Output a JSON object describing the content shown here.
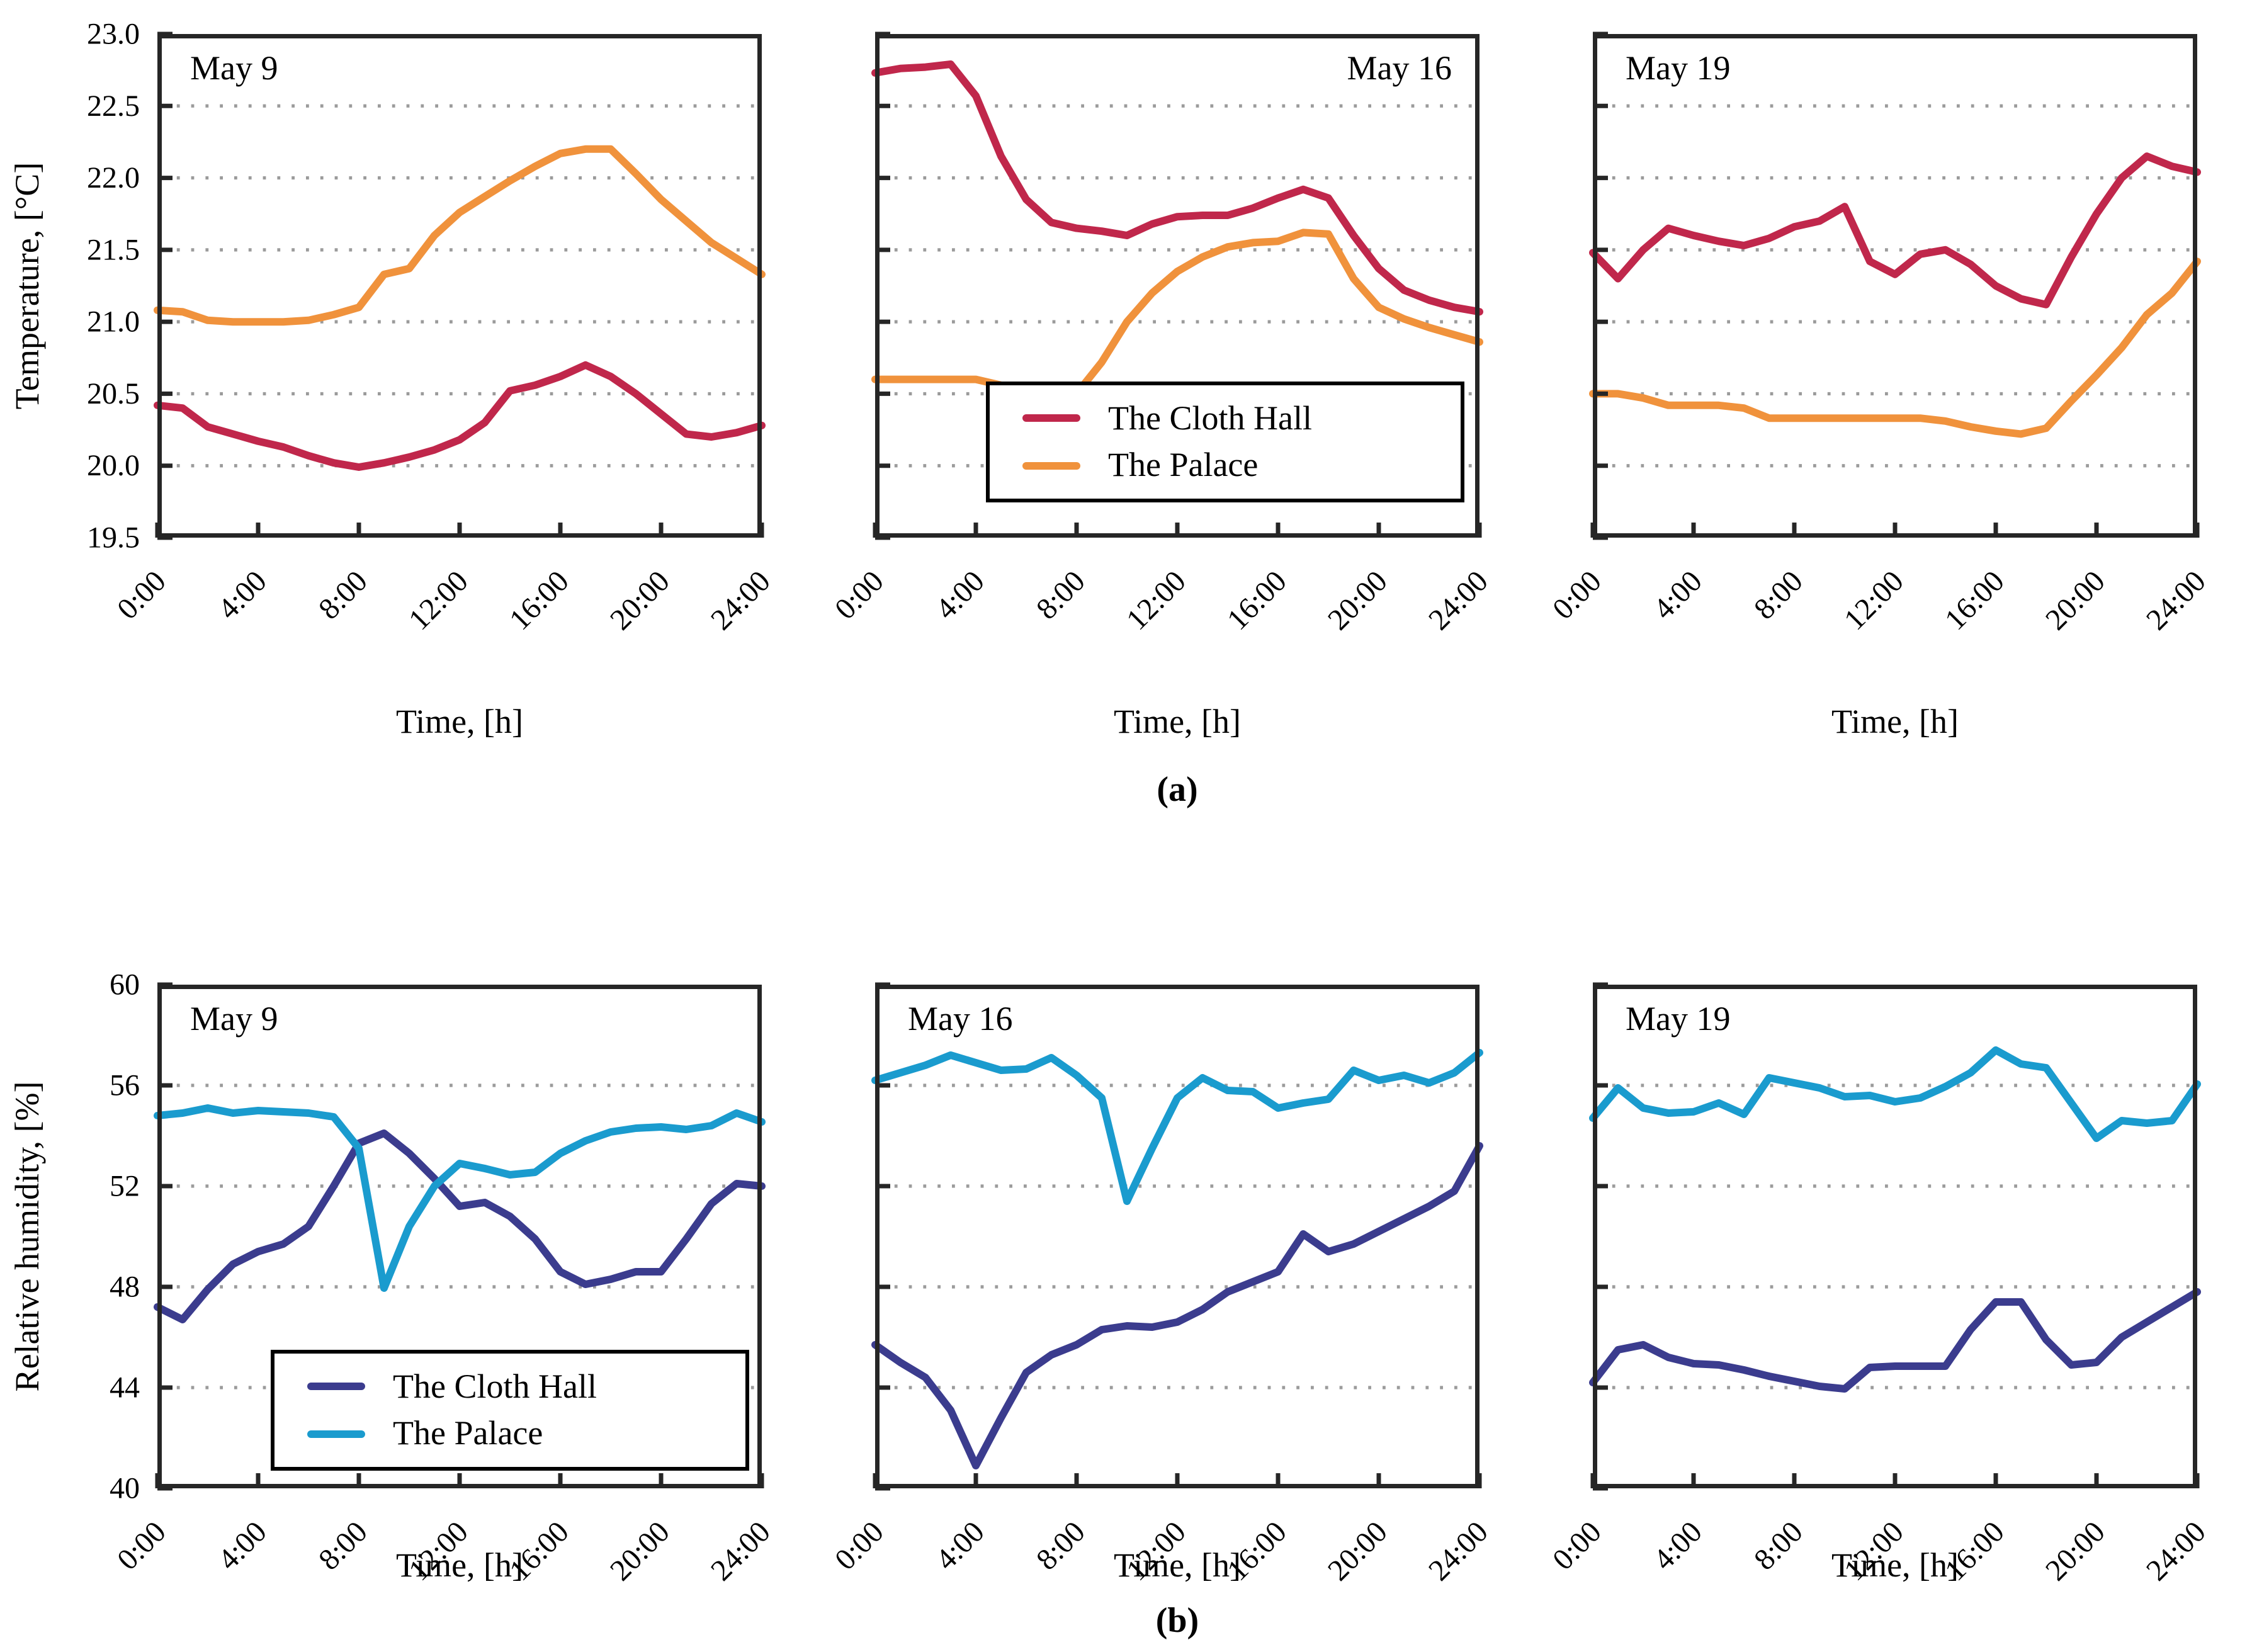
{
  "figure": {
    "sublabels": {
      "a": "(a)",
      "b": "(b)"
    }
  },
  "colors": {
    "cloth_hall_temperature": "#c0274b",
    "palace_temperature": "#f0923c",
    "cloth_hall_humidity": "#3b3c8e",
    "palace_humidity": "#1a9bce",
    "grid": "#9b9b9b",
    "frame": "#262626"
  },
  "legend_temperature": {
    "entries": [
      {
        "label": "The Cloth Hall",
        "color": "cloth_hall_temperature"
      },
      {
        "label": "The Palace",
        "color": "palace_temperature"
      }
    ]
  },
  "legend_humidity": {
    "entries": [
      {
        "label": "The Cloth Hall",
        "color": "cloth_hall_humidity"
      },
      {
        "label": "The Palace",
        "color": "palace_humidity"
      }
    ]
  },
  "chart_data": [
    {
      "type": "line",
      "title": "May 9",
      "title_pos": "left",
      "ylabel": "Temperature, [°C]",
      "xlabel": "Time, [h]",
      "ylim": [
        19.5,
        23.0
      ],
      "yticks": [
        19.5,
        20.0,
        20.5,
        21.0,
        21.5,
        22.0,
        22.5,
        23.0
      ],
      "ytick_labels": [
        "19.5",
        "20.0",
        "20.5",
        "21.0",
        "21.5",
        "22.0",
        "22.5",
        "23.0"
      ],
      "show_ytick_labels": true,
      "gridlines": [
        20.0,
        20.5,
        21.0,
        21.5,
        22.0,
        22.5
      ],
      "x_hours": [
        0,
        1,
        2,
        3,
        4,
        5,
        6,
        7,
        8,
        9,
        10,
        11,
        12,
        13,
        14,
        15,
        16,
        17,
        18,
        19,
        20,
        21,
        22,
        23,
        24
      ],
      "xticks": [
        0,
        4,
        8,
        12,
        16,
        20,
        24
      ],
      "xtick_labels": [
        "0:00",
        "4:00",
        "8:00",
        "12:00",
        "16:00",
        "20:00",
        "24:00"
      ],
      "grid": true,
      "legend_position": "none",
      "series": [
        {
          "name": "The Cloth Hall",
          "color": "cloth_hall_temperature",
          "values": [
            20.42,
            20.4,
            20.27,
            20.22,
            20.17,
            20.13,
            20.07,
            20.02,
            19.99,
            20.02,
            20.06,
            20.11,
            20.18,
            20.3,
            20.52,
            20.56,
            20.62,
            20.7,
            20.62,
            20.5,
            20.36,
            20.22,
            20.2,
            20.23,
            20.28
          ]
        },
        {
          "name": "The Palace",
          "color": "palace_temperature",
          "values": [
            21.08,
            21.07,
            21.01,
            21.0,
            21.0,
            21.0,
            21.01,
            21.05,
            21.1,
            21.33,
            21.37,
            21.6,
            21.76,
            21.87,
            21.98,
            22.08,
            22.17,
            22.2,
            22.2,
            22.03,
            21.85,
            21.7,
            21.55,
            21.44,
            21.33
          ]
        }
      ]
    },
    {
      "type": "line",
      "title": "May 16",
      "title_pos": "right",
      "ylabel": "Temperature, [°C]",
      "xlabel": "Time, [h]",
      "ylim": [
        19.5,
        23.0
      ],
      "yticks": [
        19.5,
        20.0,
        20.5,
        21.0,
        21.5,
        22.0,
        22.5,
        23.0
      ],
      "ytick_labels": [
        "19.5",
        "20.0",
        "20.5",
        "21.0",
        "21.5",
        "22.0",
        "22.5",
        "23.0"
      ],
      "show_ytick_labels": false,
      "gridlines": [
        20.0,
        20.5,
        21.0,
        21.5,
        22.0,
        22.5
      ],
      "x_hours": [
        0,
        1,
        2,
        3,
        4,
        5,
        6,
        7,
        8,
        9,
        10,
        11,
        12,
        13,
        14,
        15,
        16,
        17,
        18,
        19,
        20,
        21,
        22,
        23,
        24
      ],
      "xticks": [
        0,
        4,
        8,
        12,
        16,
        20,
        24
      ],
      "xtick_labels": [
        "0:00",
        "4:00",
        "8:00",
        "12:00",
        "16:00",
        "20:00",
        "24:00"
      ],
      "grid": true,
      "legend_position": "lower-center",
      "series": [
        {
          "name": "The Cloth Hall",
          "color": "cloth_hall_temperature",
          "values": [
            22.73,
            22.76,
            22.77,
            22.79,
            22.57,
            22.15,
            21.85,
            21.69,
            21.65,
            21.63,
            21.6,
            21.68,
            21.73,
            21.74,
            21.74,
            21.79,
            21.86,
            21.92,
            21.86,
            21.6,
            21.37,
            21.22,
            21.15,
            21.1,
            21.07
          ]
        },
        {
          "name": "The Palace",
          "color": "palace_temperature",
          "values": [
            20.6,
            20.6,
            20.6,
            20.6,
            20.6,
            20.56,
            20.5,
            20.5,
            20.5,
            20.72,
            21.0,
            21.2,
            21.35,
            21.45,
            21.52,
            21.55,
            21.56,
            21.62,
            21.61,
            21.3,
            21.1,
            21.02,
            20.96,
            20.91,
            20.86
          ]
        }
      ]
    },
    {
      "type": "line",
      "title": "May 19",
      "title_pos": "left",
      "ylabel": "Temperature, [°C]",
      "xlabel": "Time, [h]",
      "ylim": [
        19.5,
        23.0
      ],
      "yticks": [
        19.5,
        20.0,
        20.5,
        21.0,
        21.5,
        22.0,
        22.5,
        23.0
      ],
      "ytick_labels": [
        "19.5",
        "20.0",
        "20.5",
        "21.0",
        "21.5",
        "22.0",
        "22.5",
        "23.0"
      ],
      "show_ytick_labels": false,
      "gridlines": [
        20.0,
        20.5,
        21.0,
        21.5,
        22.0,
        22.5
      ],
      "x_hours": [
        0,
        1,
        2,
        3,
        4,
        5,
        6,
        7,
        8,
        9,
        10,
        11,
        12,
        13,
        14,
        15,
        16,
        17,
        18,
        19,
        20,
        21,
        22,
        23,
        24
      ],
      "xticks": [
        0,
        4,
        8,
        12,
        16,
        20,
        24
      ],
      "xtick_labels": [
        "0:00",
        "4:00",
        "8:00",
        "12:00",
        "16:00",
        "20:00",
        "24:00"
      ],
      "grid": true,
      "legend_position": "none",
      "series": [
        {
          "name": "The Cloth Hall",
          "color": "cloth_hall_temperature",
          "values": [
            21.48,
            21.3,
            21.5,
            21.65,
            21.6,
            21.56,
            21.53,
            21.58,
            21.66,
            21.7,
            21.8,
            21.42,
            21.33,
            21.47,
            21.5,
            21.4,
            21.25,
            21.16,
            21.12,
            21.45,
            21.75,
            22.0,
            22.15,
            22.08,
            22.04
          ]
        },
        {
          "name": "The Palace",
          "color": "palace_temperature",
          "values": [
            20.5,
            20.5,
            20.47,
            20.42,
            20.42,
            20.42,
            20.4,
            20.33,
            20.33,
            20.33,
            20.33,
            20.33,
            20.33,
            20.33,
            20.31,
            20.27,
            20.24,
            20.22,
            20.26,
            20.45,
            20.63,
            20.82,
            21.05,
            21.2,
            21.42
          ]
        }
      ]
    },
    {
      "type": "line",
      "title": "May 9",
      "title_pos": "left",
      "ylabel": "Relative humidity, [%]",
      "xlabel": "Time, [h]",
      "ylim": [
        40,
        60
      ],
      "yticks": [
        40,
        44,
        48,
        52,
        56,
        60
      ],
      "ytick_labels": [
        "40",
        "44",
        "48",
        "52",
        "56",
        "60"
      ],
      "show_ytick_labels": true,
      "gridlines": [
        44,
        48,
        52,
        56
      ],
      "x_hours": [
        0,
        1,
        2,
        3,
        4,
        5,
        6,
        7,
        8,
        9,
        10,
        11,
        12,
        13,
        14,
        15,
        16,
        17,
        18,
        19,
        20,
        21,
        22,
        23,
        24
      ],
      "xticks": [
        0,
        4,
        8,
        12,
        16,
        20,
        24
      ],
      "xtick_labels": [
        "0:00",
        "4:00",
        "8:00",
        "12:00",
        "16:00",
        "20:00",
        "24:00"
      ],
      "grid": true,
      "legend_position": "lower-center",
      "series": [
        {
          "name": "The Cloth Hall",
          "color": "cloth_hall_humidity",
          "values": [
            47.2,
            46.7,
            47.9,
            48.9,
            49.4,
            49.7,
            50.4,
            52.0,
            53.7,
            54.1,
            53.3,
            52.3,
            51.2,
            51.35,
            50.8,
            49.9,
            48.6,
            48.1,
            48.3,
            48.6,
            48.6,
            49.9,
            51.3,
            52.1,
            52.0
          ]
        },
        {
          "name": "The Palace",
          "color": "palace_humidity",
          "values": [
            54.8,
            54.9,
            55.1,
            54.9,
            55.0,
            54.95,
            54.9,
            54.75,
            53.5,
            47.95,
            50.4,
            52.0,
            52.9,
            52.7,
            52.45,
            52.55,
            53.3,
            53.8,
            54.15,
            54.3,
            54.35,
            54.25,
            54.4,
            54.9,
            54.55
          ]
        }
      ]
    },
    {
      "type": "line",
      "title": "May 16",
      "title_pos": "left",
      "ylabel": "Relative humidity, [%]",
      "xlabel": "Time, [h]",
      "ylim": [
        40,
        60
      ],
      "yticks": [
        40,
        44,
        48,
        52,
        56,
        60
      ],
      "ytick_labels": [
        "40",
        "44",
        "48",
        "52",
        "56",
        "60"
      ],
      "show_ytick_labels": false,
      "gridlines": [
        44,
        48,
        52,
        56
      ],
      "x_hours": [
        0,
        1,
        2,
        3,
        4,
        5,
        6,
        7,
        8,
        9,
        10,
        11,
        12,
        13,
        14,
        15,
        16,
        17,
        18,
        19,
        20,
        21,
        22,
        23,
        24
      ],
      "xticks": [
        0,
        4,
        8,
        12,
        16,
        20,
        24
      ],
      "xtick_labels": [
        "0:00",
        "4:00",
        "8:00",
        "12:00",
        "16:00",
        "20:00",
        "24:00"
      ],
      "grid": true,
      "legend_position": "none",
      "series": [
        {
          "name": "The Cloth Hall",
          "color": "cloth_hall_humidity",
          "values": [
            45.7,
            45.0,
            44.4,
            43.1,
            40.9,
            42.8,
            44.6,
            45.3,
            45.7,
            46.3,
            46.45,
            46.4,
            46.6,
            47.1,
            47.8,
            48.2,
            48.6,
            50.1,
            49.4,
            49.7,
            50.2,
            50.7,
            51.2,
            51.8,
            53.6
          ]
        },
        {
          "name": "The Palace",
          "color": "palace_humidity",
          "values": [
            56.2,
            56.5,
            56.8,
            57.2,
            56.9,
            56.6,
            56.65,
            57.1,
            56.4,
            55.5,
            51.4,
            53.5,
            55.5,
            56.3,
            55.8,
            55.75,
            55.1,
            55.3,
            55.45,
            56.6,
            56.2,
            56.4,
            56.1,
            56.5,
            57.3
          ]
        }
      ]
    },
    {
      "type": "line",
      "title": "May 19",
      "title_pos": "left",
      "ylabel": "Relative humidity, [%]",
      "xlabel": "Time, [h]",
      "ylim": [
        40,
        60
      ],
      "yticks": [
        40,
        44,
        48,
        52,
        56,
        60
      ],
      "ytick_labels": [
        "40",
        "44",
        "48",
        "52",
        "56",
        "60"
      ],
      "show_ytick_labels": false,
      "gridlines": [
        44,
        48,
        52,
        56
      ],
      "x_hours": [
        0,
        1,
        2,
        3,
        4,
        5,
        6,
        7,
        8,
        9,
        10,
        11,
        12,
        13,
        14,
        15,
        16,
        17,
        18,
        19,
        20,
        21,
        22,
        23,
        24
      ],
      "xticks": [
        0,
        4,
        8,
        12,
        16,
        20,
        24
      ],
      "xtick_labels": [
        "0:00",
        "4:00",
        "8:00",
        "12:00",
        "16:00",
        "20:00",
        "24:00"
      ],
      "grid": true,
      "legend_position": "none",
      "series": [
        {
          "name": "The Cloth Hall",
          "color": "cloth_hall_humidity",
          "values": [
            44.2,
            45.5,
            45.7,
            45.2,
            44.95,
            44.9,
            44.7,
            44.45,
            44.25,
            44.05,
            43.95,
            44.8,
            44.85,
            44.85,
            44.85,
            46.3,
            47.4,
            47.4,
            45.9,
            44.9,
            45.0,
            46.0,
            46.6,
            47.2,
            47.8
          ]
        },
        {
          "name": "The Palace",
          "color": "palace_humidity",
          "values": [
            54.7,
            55.9,
            55.1,
            54.9,
            54.95,
            55.3,
            54.85,
            56.3,
            56.1,
            55.9,
            55.55,
            55.6,
            55.35,
            55.5,
            55.95,
            56.5,
            57.4,
            56.85,
            56.7,
            55.3,
            53.9,
            54.6,
            54.5,
            54.6,
            56.05
          ]
        }
      ]
    }
  ]
}
